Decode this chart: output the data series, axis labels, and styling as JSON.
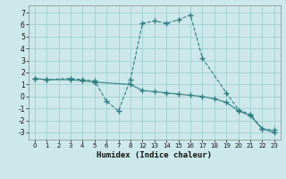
{
  "xlabel": "Humidex (Indice chaleur)",
  "bg_color": "#cce8ea",
  "grid_color": "#99cccc",
  "line_color": "#2e7d7d",
  "xlim": [
    -0.5,
    20.5
  ],
  "ylim": [
    -3.6,
    7.6
  ],
  "xtick_positions": [
    0,
    1,
    2,
    3,
    4,
    5,
    6,
    7,
    8,
    9,
    10,
    11,
    12,
    13,
    14,
    15,
    16,
    17,
    18,
    19,
    20
  ],
  "xtick_labels": [
    "0",
    "1",
    "2",
    "3",
    "4",
    "5",
    "6",
    "7",
    "8",
    "12",
    "13",
    "14",
    "15",
    "16",
    "17",
    "18",
    "19",
    "20",
    "21",
    "22",
    "23"
  ],
  "yticks": [
    -3,
    -2,
    -1,
    0,
    1,
    2,
    3,
    4,
    5,
    6,
    7
  ],
  "series1_x_idx": [
    0,
    1,
    3,
    4,
    5,
    6,
    7,
    8,
    9,
    10,
    11,
    12,
    13,
    14,
    16,
    17,
    18,
    19,
    20
  ],
  "series1_y": [
    1.5,
    1.4,
    1.5,
    1.4,
    1.3,
    -0.4,
    -1.2,
    1.4,
    6.1,
    6.3,
    6.1,
    6.4,
    6.8,
    3.2,
    0.3,
    -1.1,
    -1.5,
    -2.7,
    -2.8
  ],
  "series2_x_idx": [
    0,
    1,
    3,
    4,
    5,
    8,
    9,
    10,
    11,
    12,
    13,
    14,
    15,
    16,
    17,
    18,
    19,
    20
  ],
  "series2_y": [
    1.5,
    1.4,
    1.4,
    1.3,
    1.2,
    1.0,
    0.5,
    0.4,
    0.3,
    0.2,
    0.1,
    0.0,
    -0.2,
    -0.5,
    -1.2,
    -1.6,
    -2.7,
    -3.0
  ]
}
